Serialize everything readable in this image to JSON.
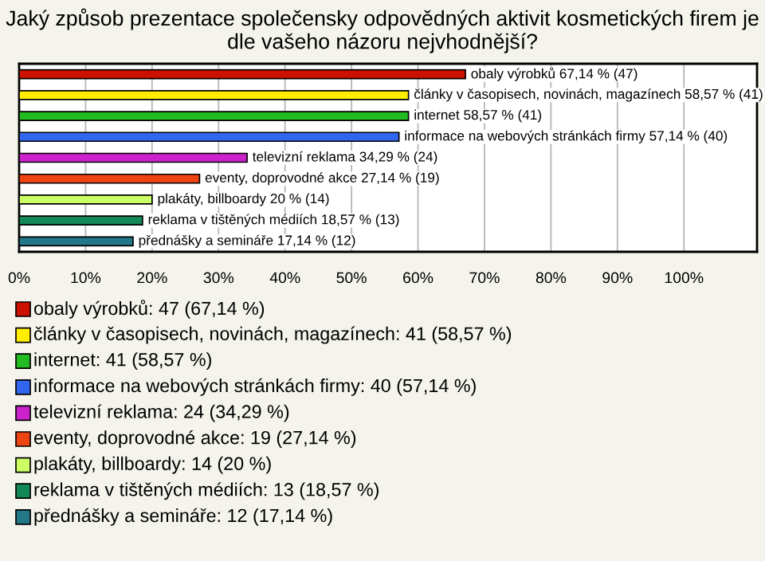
{
  "chart_data": {
    "type": "bar",
    "orientation": "horizontal",
    "title": "Jaký způsob prezentace společensky odpovědných aktivit kosmetických firem je dle vašeho názoru nejvhodnější?",
    "categories": [
      "obaly výrobků",
      "články v časopisech, novinách, magazínech",
      "internet",
      "informace na webových stránkách firmy",
      "televizní reklama",
      "eventy, doprovodné akce",
      "plakáty, billboardy",
      "reklama v tištěných médiích",
      "přednášky a semináře"
    ],
    "values": [
      67.14,
      58.57,
      58.57,
      57.14,
      34.29,
      27.14,
      20,
      18.57,
      17.14
    ],
    "value_labels": [
      "67,14 % (47)",
      "58,57 % (41)",
      "58,57 % (41)",
      "57,14 % (40)",
      "34,29 % (24)",
      "27,14 % (19)",
      "20 % (14)",
      "18,57 % (13)",
      "17,14 % (12)"
    ],
    "colors": [
      "#cc1100",
      "#ffee00",
      "#22bb22",
      "#3366ee",
      "#cc22cc",
      "#ee4411",
      "#ccff66",
      "#118855",
      "#227788"
    ],
    "xlim": [
      0,
      111
    ],
    "xticks": [
      {
        "value": 0,
        "label": "0%"
      },
      {
        "value": 10,
        "label": "10%"
      },
      {
        "value": 20,
        "label": "20%"
      },
      {
        "value": 30,
        "label": "30%"
      },
      {
        "value": 40,
        "label": "40%"
      },
      {
        "value": 50,
        "label": "50%"
      },
      {
        "value": 60,
        "label": "60%"
      },
      {
        "value": 70,
        "label": "70%"
      },
      {
        "value": 80,
        "label": "80%"
      },
      {
        "value": 90,
        "label": "90%"
      },
      {
        "value": 100,
        "label": "100%"
      }
    ],
    "grid": "x",
    "annotations": [
      "obaly výrobků: 47 (67,14 %)",
      "články v časopisech, novinách, magazínech: 41 (58,57 %)",
      "internet: 41 (58,57 %)",
      "informace na webových stránkách firmy: 40 (57,14 %)",
      "televizní reklama: 24 (34,29 %)",
      "eventy, doprovodné akce: 19 (27,14 %)",
      "plakáty, billboardy: 14 (20 %)",
      "reklama v tištěných médiích: 13 (18,57 %)",
      "přednášky a semináře: 12 (17,14 %)"
    ]
  }
}
